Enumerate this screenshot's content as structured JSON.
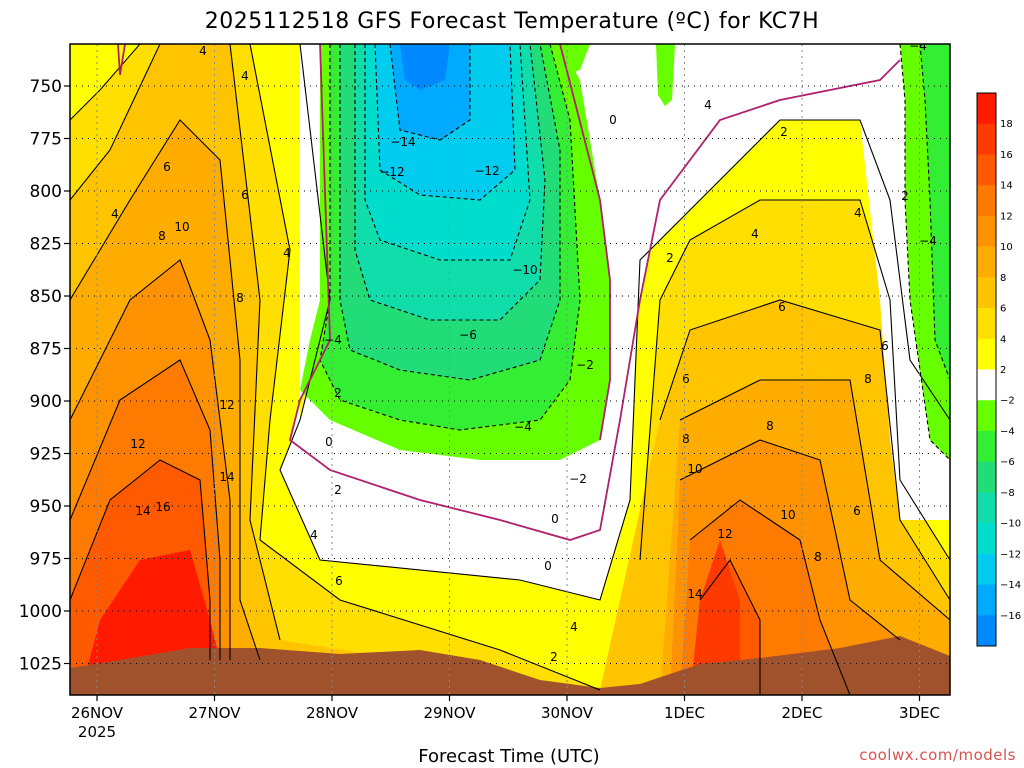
{
  "chart_data": {
    "type": "contour",
    "title": "2025112518 GFS Forecast Temperature (ºC) for KC7H",
    "xlabel": "Forecast Time (UTC)",
    "ylabel": "",
    "credit": "coolwx.com/models",
    "y_axis": {
      "ticks": [
        750,
        775,
        800,
        825,
        850,
        875,
        900,
        925,
        950,
        975,
        1000,
        1025
      ],
      "range": [
        1040,
        730
      ],
      "inverted": true
    },
    "x_axis": {
      "ticks": [
        {
          "label": "26NOV",
          "sub": "2025",
          "day": 0
        },
        {
          "label": "27NOV",
          "day": 1
        },
        {
          "label": "28NOV",
          "day": 2
        },
        {
          "label": "29NOV",
          "day": 3
        },
        {
          "label": "30NOV",
          "day": 4
        },
        {
          "label": "1DEC",
          "day": 5
        },
        {
          "label": "2DEC",
          "day": 6
        },
        {
          "label": "3DEC",
          "day": 7
        }
      ]
    },
    "colorbar": {
      "labels": [
        "18",
        "16",
        "14",
        "12",
        "10",
        "8",
        "6",
        "4",
        "2",
        "−2",
        "−4",
        "−6",
        "−8",
        "−10",
        "−12",
        "−14",
        "−16"
      ],
      "colors": [
        "#ff1a00",
        "#ff3a00",
        "#ff5a00",
        "#ff7a00",
        "#ff9200",
        "#ffac00",
        "#ffc400",
        "#ffdf00",
        "#ffff00",
        "#ffffff",
        "#66ff00",
        "#33ee33",
        "#22dd77",
        "#11ddaa",
        "#00ddcc",
        "#00ccf0",
        "#00aaff",
        "#0088ff"
      ]
    },
    "contour_labels": [
      "4",
      "4",
      "6",
      "6",
      "4",
      "8",
      "10",
      "8",
      "4",
      "12",
      "12",
      "14",
      "14",
      "16",
      "−14",
      "−12",
      "−12",
      "−10",
      "−6",
      "−4",
      "−2",
      "−4",
      "−2",
      "2",
      "0",
      "2",
      "4",
      "6",
      "4",
      "2",
      "0",
      "0",
      "0",
      "−4",
      "−4",
      "2",
      "2",
      "4",
      "4",
      "6",
      "6",
      "6",
      "8",
      "8",
      "8",
      "10",
      "10",
      "12",
      "14",
      "8",
      "6",
      "4",
      "2"
    ]
  }
}
